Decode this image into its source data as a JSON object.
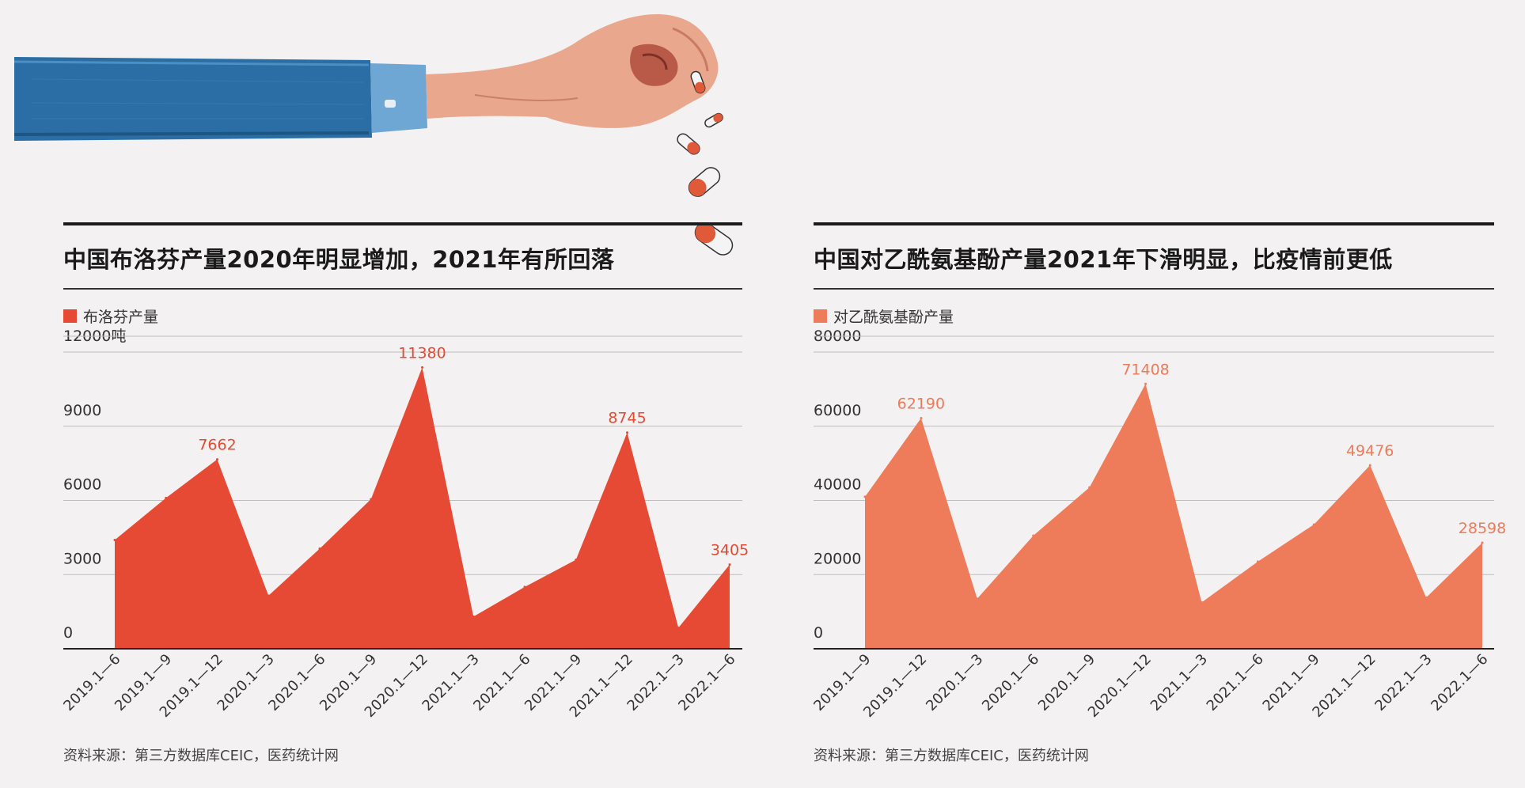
{
  "colors": {
    "ibuprofen": "#e64a34",
    "paracetamol": "#ee7b59",
    "grid": "#bdbdbd",
    "axis": "#222222",
    "text": "#333333"
  },
  "chart_data": [
    {
      "type": "area",
      "title": "中国布洛芬产量2020年明显增加，2021年有所回落",
      "series": [
        {
          "name": "布洛芬产量",
          "values": [
            4400,
            6100,
            7662,
            2150,
            4050,
            6050,
            11380,
            1300,
            2500,
            3600,
            8745,
            850,
            3405
          ]
        }
      ],
      "categories": [
        "2019.1—6",
        "2019.1—9",
        "2019.1—12",
        "2020.1—3",
        "2020.1—6",
        "2020.1—9",
        "2020.1—12",
        "2021.1—3",
        "2021.1—6",
        "2021.1—9",
        "2021.1—12",
        "2022.1—3",
        "2022.1—6"
      ],
      "value_labels": [
        {
          "index": 2,
          "text": "7662"
        },
        {
          "index": 6,
          "text": "11380"
        },
        {
          "index": 10,
          "text": "8745"
        },
        {
          "index": 12,
          "text": "3405"
        }
      ],
      "yticks": [
        {
          "value": 0,
          "label": "0"
        },
        {
          "value": 3000,
          "label": "3000"
        },
        {
          "value": 6000,
          "label": "6000"
        },
        {
          "value": 9000,
          "label": "9000"
        },
        {
          "value": 12000,
          "label": "12000吨"
        }
      ],
      "ylim": [
        0,
        12000
      ],
      "grid": true,
      "legend": "top-left",
      "source": "资料来源：第三方数据库CEIC，医药统计网"
    },
    {
      "type": "area",
      "title": "中国对乙酰氨基酚产量2021年下滑明显，比疫情前更低",
      "series": [
        {
          "name": "对乙酰氨基酚产量",
          "values": [
            41000,
            62190,
            13500,
            30500,
            43500,
            71408,
            12500,
            23500,
            33500,
            49476,
            13800,
            28598
          ]
        }
      ],
      "categories": [
        "2019.1—9",
        "2019.1—12",
        "2020.1—3",
        "2020.1—6",
        "2020.1—9",
        "2020.1—12",
        "2021.1—3",
        "2021.1—6",
        "2021.1—9",
        "2021.1—12",
        "2022.1—3",
        "2022.1—6"
      ],
      "value_labels": [
        {
          "index": 1,
          "text": "62190"
        },
        {
          "index": 5,
          "text": "71408"
        },
        {
          "index": 9,
          "text": "49476"
        },
        {
          "index": 11,
          "text": "28598"
        }
      ],
      "yticks": [
        {
          "value": 0,
          "label": "0"
        },
        {
          "value": 20000,
          "label": "20000"
        },
        {
          "value": 40000,
          "label": "40000"
        },
        {
          "value": 60000,
          "label": "60000"
        },
        {
          "value": 80000,
          "label": "80000"
        }
      ],
      "ylim": [
        0,
        80000
      ],
      "grid": true,
      "legend": "top-left",
      "source": "资料来源：第三方数据库CEIC，医药统计网"
    }
  ]
}
